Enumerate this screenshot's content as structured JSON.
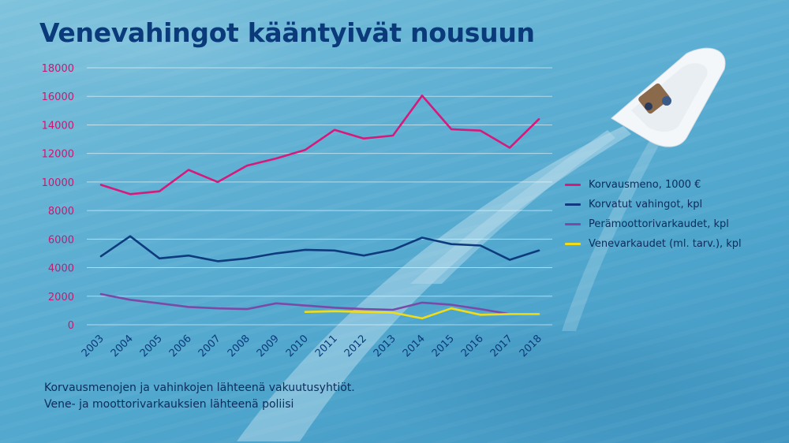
{
  "title": "Venevahingot kääntyivät nousuun",
  "source_lines": [
    "Korvausmenojen ja vahinkojen lähteenä vakuutusyhtiöt.",
    "Vene- ja moottorivarkauksien lähteenä poliisi"
  ],
  "colors": {
    "title": "#0b3a7a",
    "tick_text": "#0b3a7a",
    "y_tick_text": "#c7196f"
  },
  "chart_data": {
    "type": "line",
    "categories": [
      "2003",
      "2004",
      "2005",
      "2006",
      "2007",
      "2008",
      "2009",
      "2010",
      "2011",
      "2012",
      "2013",
      "2014",
      "2015",
      "2016",
      "2017",
      "2018"
    ],
    "ylim": [
      0,
      18000
    ],
    "yticks": [
      "0",
      "2000",
      "4000",
      "6000",
      "8000",
      "10000",
      "12000",
      "14000",
      "16000",
      "18000"
    ],
    "grid": true,
    "legend_position": "right",
    "series": [
      {
        "name": "Korvausmeno, 1000 €",
        "color": "#d6197b",
        "values": [
          9800,
          9150,
          9350,
          10850,
          10000,
          11150,
          11650,
          12250,
          13650,
          13050,
          13250,
          16050,
          13700,
          13600,
          12400,
          14400
        ]
      },
      {
        "name": "Korvatut vahingot, kpl",
        "color": "#0d3b7e",
        "values": [
          4800,
          6200,
          4650,
          4850,
          4450,
          4650,
          5000,
          5250,
          5200,
          4850,
          5250,
          6100,
          5650,
          5550,
          4550,
          5200
        ]
      },
      {
        "name": "Perämoottorivarkaudet, kpl",
        "color": "#7a4aa6",
        "values": [
          2150,
          1750,
          1500,
          1250,
          1150,
          1100,
          1500,
          1350,
          1200,
          1100,
          1050,
          1550,
          1400,
          1100,
          750,
          750
        ]
      },
      {
        "name": "Venevarkaudet (ml. tarv.), kpl",
        "color": "#f2dc18",
        "values": [
          null,
          null,
          null,
          null,
          null,
          null,
          null,
          900,
          950,
          900,
          850,
          450,
          1150,
          700,
          750,
          750
        ]
      }
    ]
  }
}
